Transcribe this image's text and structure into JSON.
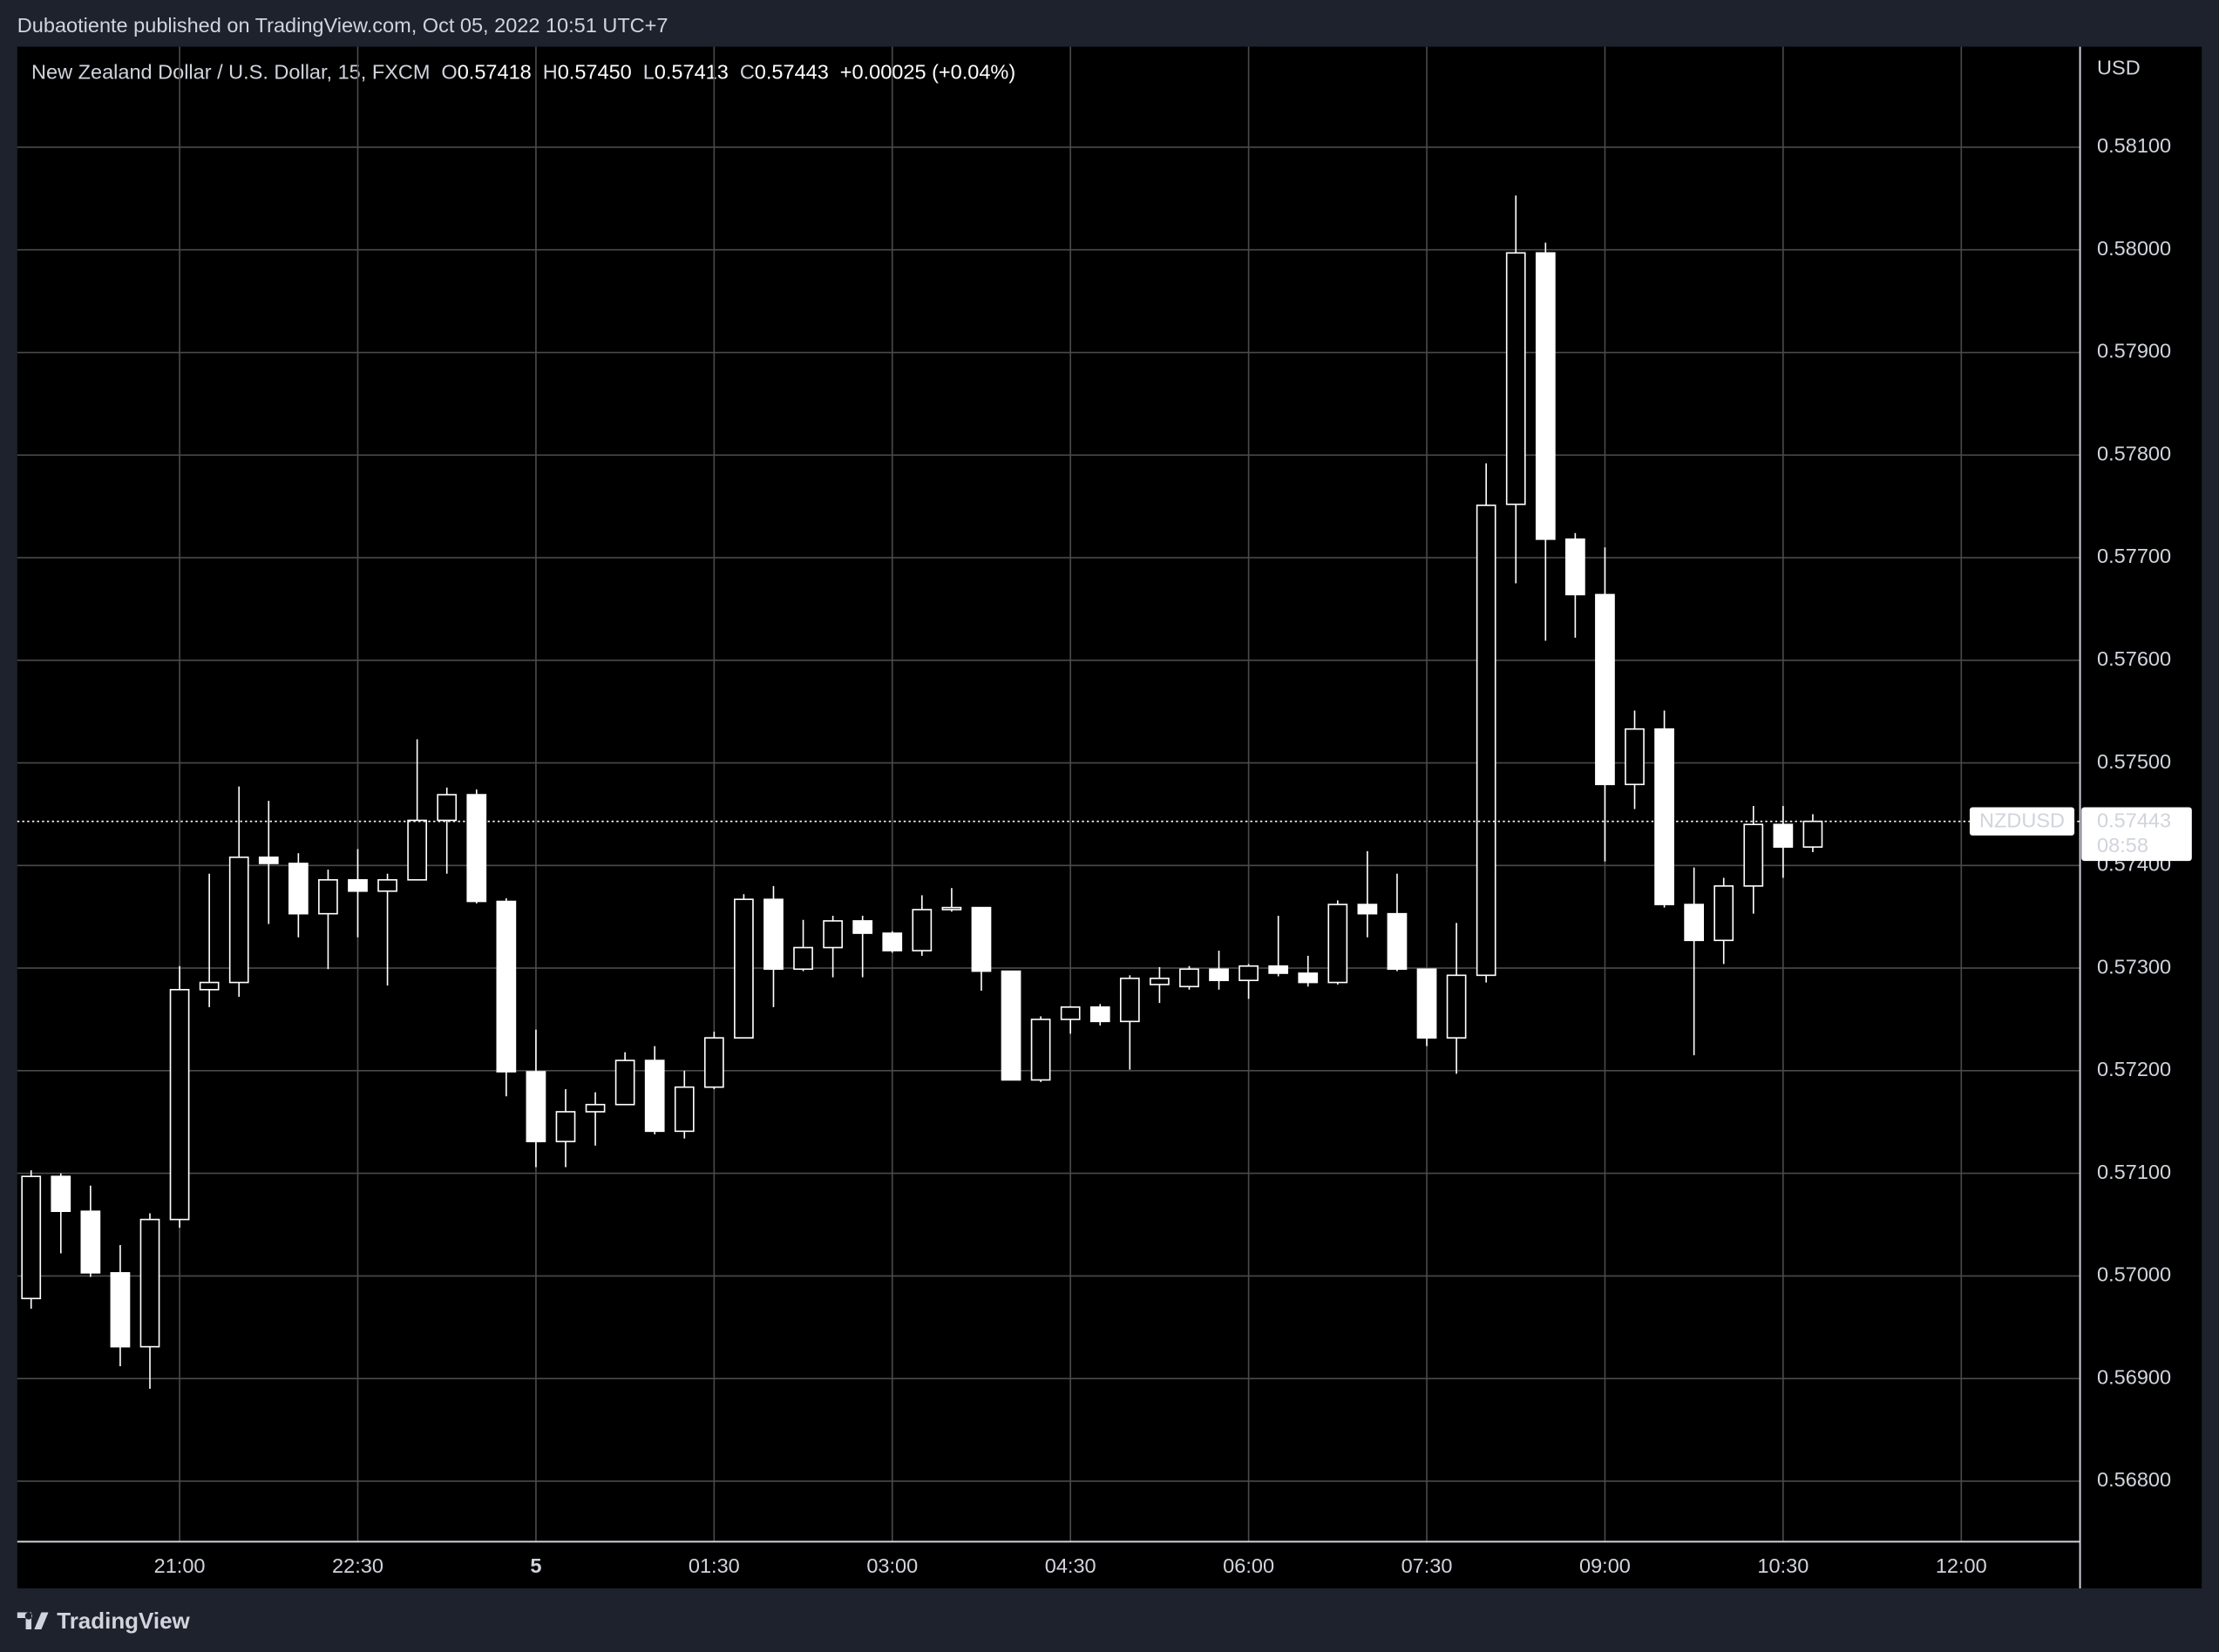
{
  "header": "Dubaotiente published on TradingView.com, Oct 05, 2022 10:51 UTC+7",
  "footer": "TradingView",
  "chart_data": {
    "type": "candlestick",
    "legend_title": "New Zealand Dollar / U.S. Dollar, 15, FXCM",
    "ohlc_legend": [
      {
        "key": "O",
        "value": "0.57418"
      },
      {
        "key": "H",
        "value": "0.57450"
      },
      {
        "key": "L",
        "value": "0.57413"
      },
      {
        "key": "C",
        "value": "0.57443"
      }
    ],
    "change": "+0.00025 (+0.04%)",
    "y_label": "USD",
    "x": [
      "19:45",
      "20:00",
      "20:15",
      "20:30",
      "20:45",
      "21:00",
      "21:15",
      "21:30",
      "21:45",
      "22:00",
      "22:15",
      "22:30",
      "22:45",
      "23:00",
      "23:15",
      "23:30",
      "23:45",
      "00:00",
      "00:15",
      "00:30",
      "00:45",
      "01:00",
      "01:15",
      "01:30",
      "01:45",
      "02:00",
      "02:15",
      "02:30",
      "02:45",
      "03:00",
      "03:15",
      "03:30",
      "03:45",
      "04:00",
      "04:15",
      "04:30",
      "04:45",
      "05:00",
      "05:15",
      "05:30",
      "05:45",
      "06:00",
      "06:15",
      "06:30",
      "06:45",
      "07:00",
      "07:15",
      "07:30",
      "07:45",
      "08:00",
      "08:15",
      "08:30",
      "08:45",
      "09:00",
      "09:15",
      "09:30",
      "09:45",
      "10:00",
      "10:15",
      "10:30",
      "10:45"
    ],
    "series": [
      {
        "name": "NZDUSD",
        "color": "#ffffff",
        "open": [
          0.56978,
          0.57097,
          0.57063,
          0.57003,
          0.56931,
          0.57055,
          0.57279,
          0.57286,
          0.57408,
          0.57402,
          0.57353,
          0.57386,
          0.57375,
          0.57386,
          0.57444,
          0.57469,
          0.57365,
          0.57199,
          0.57131,
          0.5716,
          0.57167,
          0.5721,
          0.57141,
          0.57184,
          0.57232,
          0.57367,
          0.57299,
          0.5732,
          0.57346,
          0.57334,
          0.57317,
          0.57357,
          0.57359,
          0.57297,
          0.57191,
          0.5725,
          0.57262,
          0.57248,
          0.57284,
          0.57282,
          0.57299,
          0.57288,
          0.57302,
          0.57295,
          0.57286,
          0.57362,
          0.57353,
          0.57299,
          0.57232,
          0.57293,
          0.57752,
          0.57997,
          0.57718,
          0.57664,
          0.57479,
          0.57533,
          0.57362,
          0.57327,
          0.5738,
          0.5744,
          0.57418
        ],
        "high": [
          0.57103,
          0.571,
          0.57088,
          0.5703,
          0.57061,
          0.57302,
          0.57392,
          0.57477,
          0.57463,
          0.57412,
          0.57396,
          0.57416,
          0.57392,
          0.57523,
          0.57476,
          0.57474,
          0.57368,
          0.5724,
          0.57182,
          0.57179,
          0.57218,
          0.57224,
          0.572,
          0.57238,
          0.57372,
          0.5738,
          0.57347,
          0.57351,
          0.57351,
          0.57336,
          0.57371,
          0.57378,
          0.57359,
          0.57297,
          0.57253,
          0.57263,
          0.57265,
          0.57293,
          0.57301,
          0.57302,
          0.57317,
          0.57304,
          0.57351,
          0.57312,
          0.57366,
          0.57414,
          0.57392,
          0.57299,
          0.57344,
          0.57792,
          0.58053,
          0.58007,
          0.57724,
          0.5771,
          0.57551,
          0.57551,
          0.57398,
          0.57388,
          0.57458,
          0.57458,
          0.5745
        ],
        "low": [
          0.56968,
          0.57022,
          0.56999,
          0.56912,
          0.5689,
          0.57047,
          0.57262,
          0.57272,
          0.57343,
          0.5733,
          0.57299,
          0.5733,
          0.57283,
          0.57386,
          0.57392,
          0.57363,
          0.57175,
          0.57106,
          0.57106,
          0.57127,
          0.57167,
          0.57138,
          0.57134,
          0.57182,
          0.57232,
          0.57262,
          0.57297,
          0.57291,
          0.57291,
          0.57315,
          0.57312,
          0.57355,
          0.57278,
          0.57191,
          0.57189,
          0.57236,
          0.57244,
          0.57201,
          0.57266,
          0.57279,
          0.57279,
          0.5727,
          0.57292,
          0.57282,
          0.57284,
          0.5733,
          0.57297,
          0.57224,
          0.57197,
          0.57286,
          0.57675,
          0.57619,
          0.57622,
          0.57404,
          0.57455,
          0.57359,
          0.57215,
          0.57304,
          0.57353,
          0.57388,
          0.57413
        ],
        "close": [
          0.57097,
          0.57063,
          0.57003,
          0.56931,
          0.57055,
          0.57279,
          0.57286,
          0.57408,
          0.57402,
          0.57353,
          0.57386,
          0.57375,
          0.57386,
          0.57444,
          0.57469,
          0.57365,
          0.57199,
          0.57131,
          0.5716,
          0.57167,
          0.5721,
          0.57141,
          0.57184,
          0.57232,
          0.57367,
          0.57299,
          0.5732,
          0.57346,
          0.57334,
          0.57317,
          0.57357,
          0.57359,
          0.57297,
          0.57191,
          0.5725,
          0.57262,
          0.57248,
          0.5729,
          0.5729,
          0.57299,
          0.57288,
          0.57302,
          0.57295,
          0.57286,
          0.57362,
          0.57353,
          0.57299,
          0.57232,
          0.57293,
          0.57751,
          0.57997,
          0.57718,
          0.57664,
          0.57479,
          0.57533,
          0.57362,
          0.57327,
          0.5738,
          0.5744,
          0.57418,
          0.57443
        ]
      }
    ],
    "last_price": 0.57443,
    "countdown": "08:58",
    "xlim": [
      "19:38",
      "13:00"
    ],
    "xticks": [
      "21:00",
      "22:30",
      {
        "value": "00:00",
        "label": "5"
      },
      "01:30",
      "03:00",
      "04:30",
      "06:00",
      "07:30",
      "09:00",
      "10:30",
      "12:00"
    ],
    "ylim": [
      0.56741,
      0.58198
    ],
    "yticks": [
      {
        "value": 0.568,
        "label": "0.56800"
      },
      {
        "value": 0.569,
        "label": "0.56900"
      },
      {
        "value": 0.57,
        "label": "0.57000"
      },
      {
        "value": 0.571,
        "label": "0.57100"
      },
      {
        "value": 0.572,
        "label": "0.57200"
      },
      {
        "value": 0.573,
        "label": "0.57300"
      },
      {
        "value": 0.574,
        "label": "0.57400"
      },
      {
        "value": 0.575,
        "label": "0.57500"
      },
      {
        "value": 0.576,
        "label": "0.57600"
      },
      {
        "value": 0.577,
        "label": "0.57700"
      },
      {
        "value": 0.578,
        "label": "0.57800"
      },
      {
        "value": 0.579,
        "label": "0.57900"
      },
      {
        "value": 0.58,
        "label": "0.58000"
      },
      {
        "value": 0.581,
        "label": "0.58100"
      }
    ],
    "grid": true
  }
}
